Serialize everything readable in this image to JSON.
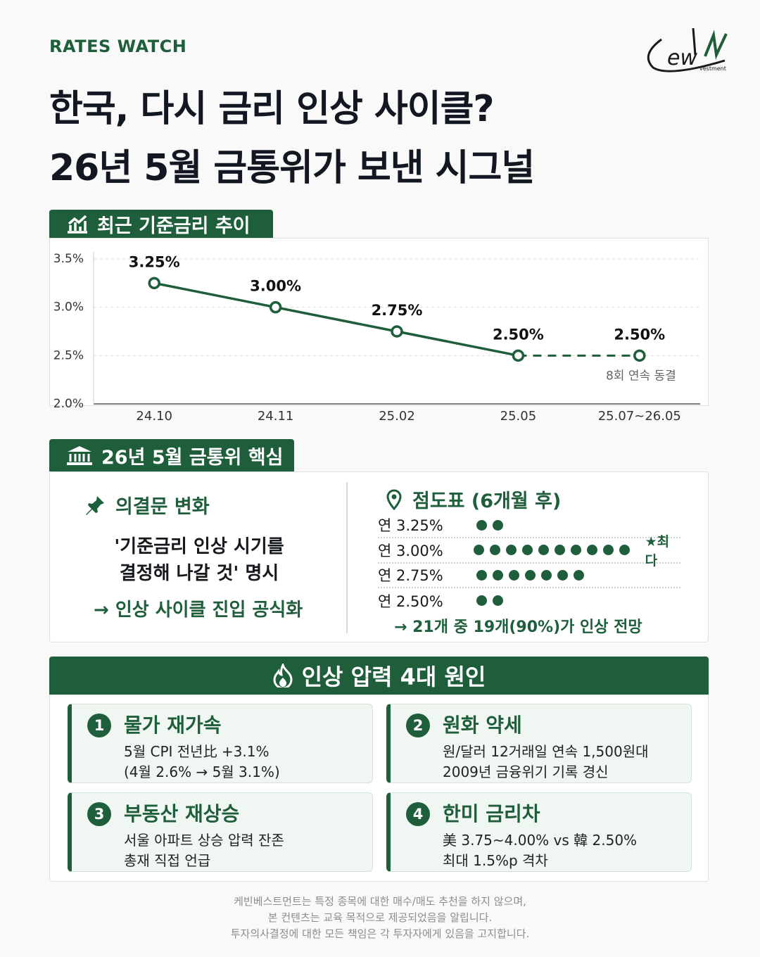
{
  "header": {
    "kicker": "RATES WATCH",
    "title_lines": [
      "한국, 다시 금리 인상 사이클?",
      "26년 5월 금통위가 보낸 시그널"
    ],
    "logo_letters": "ew",
    "logo_sub": "vestment"
  },
  "section_1": {
    "title": "최근 기준금리 추이"
  },
  "chart_data": {
    "type": "line",
    "categories": [
      "24.10",
      "24.11",
      "25.02",
      "25.05",
      "25.07~26.05"
    ],
    "values": [
      3.25,
      3.0,
      2.75,
      2.5,
      2.5
    ],
    "value_labels": [
      "3.25%",
      "3.00%",
      "2.75%",
      "2.50%",
      "2.50%"
    ],
    "annotation": "8회 연속 동결",
    "color": "#1f5e3b",
    "ylim": [
      2.0,
      3.5
    ],
    "yticks": [
      {
        "value": 2.0,
        "label": "2.0%"
      },
      {
        "value": 2.5,
        "label": "2.5%"
      },
      {
        "value": 3.0,
        "label": "3.0%"
      },
      {
        "value": 3.5,
        "label": "3.5%"
      }
    ],
    "grid": true
  },
  "section_2": {
    "title": "26년 5월 금통위 핵심",
    "statement": {
      "title": "의결문 변화",
      "quote_lines": [
        "'기준금리 인상 시기를",
        "결정해 나갈 것' 명시"
      ],
      "conclusion": "→ 인상 사이클 진입 공식화"
    },
    "dot_plot": {
      "title": "점도표 (6개월 후)",
      "rows": [
        {
          "label": "연 3.25%",
          "dots": 2
        },
        {
          "label": "연 3.00%",
          "dots": 10,
          "note": "★최다"
        },
        {
          "label": "연 2.75%",
          "dots": 7
        },
        {
          "label": "연 2.50%",
          "dots": 2
        }
      ],
      "summary": "→ 21개 중 19개(90%)가 인상 전망"
    }
  },
  "section_3": {
    "title": "인상 압력 4대 원인",
    "causes": [
      {
        "number": 1,
        "title": "물가 재가속",
        "lines": [
          "5월 CPI 전년比 +3.1%",
          "(4월 2.6% → 5월 3.1%)"
        ]
      },
      {
        "number": 2,
        "title": "원화 약세",
        "lines": [
          "원/달러 12거래일 연속 1,500원대",
          "2009년 금융위기 기록 경신"
        ]
      },
      {
        "number": 3,
        "title": "부동산 재상승",
        "lines": [
          "서울 아파트 상승 압력 잔존",
          "총재 직접 언급"
        ]
      },
      {
        "number": 4,
        "title": "한미 금리차",
        "lines": [
          "美 3.75~4.00% vs 韓 2.50%",
          "최대 1.5%p 격차"
        ]
      }
    ]
  },
  "disclaimer": [
    "케빈베스트먼트는 특정 종목에 대한 매수/매도 추천을 하지 않으며,",
    "본 컨텐츠는 교육 목적으로 제공되었음을 알립니다.",
    "투자의사결정에 대한 모든 책임은 각 투자자에게 있음을 고지합니다."
  ]
}
